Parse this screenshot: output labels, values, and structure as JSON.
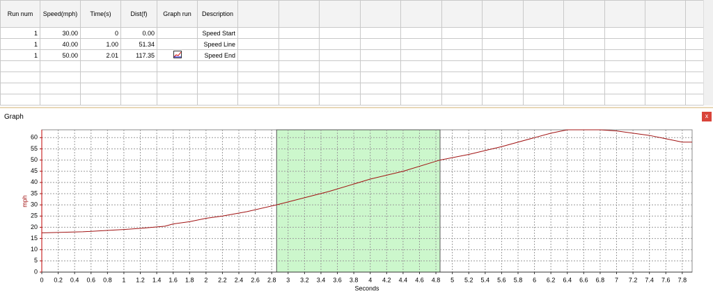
{
  "table": {
    "headers": [
      "Run num",
      "Speed(mph)",
      "Time(s)",
      "Dist(f)",
      "Graph run",
      "Description"
    ],
    "rows": [
      {
        "run": "1",
        "speed": "30.00",
        "time": "0",
        "dist": "0.00",
        "description": "Speed Start"
      },
      {
        "run": "1",
        "speed": "40.00",
        "time": "1.00",
        "dist": "51.34",
        "description": "Speed Line"
      },
      {
        "run": "1",
        "speed": "50.00",
        "time": "2.01",
        "dist": "117.35",
        "description": "Speed End"
      }
    ]
  },
  "panel": {
    "title": "Graph",
    "close": "x"
  },
  "chart_data": {
    "type": "line",
    "x_label": "Seconds",
    "y_label": "mph",
    "x": [
      0,
      0.5,
      1.0,
      1.2,
      1.5,
      1.6,
      1.8,
      2.0,
      2.2,
      2.5,
      2.86,
      3.5,
      4.0,
      4.4,
      4.85,
      5.2,
      5.6,
      6.0,
      6.2,
      6.4,
      6.8,
      7.0,
      7.4,
      7.6,
      7.8,
      7.92
    ],
    "values": [
      17.5,
      18,
      19,
      19.5,
      20.5,
      21.5,
      22.5,
      24,
      25,
      27,
      30,
      36,
      41.5,
      45,
      50,
      52.5,
      56,
      60,
      62,
      63.5,
      63.5,
      63,
      61,
      59.5,
      58,
      58
    ],
    "color": "#a01010",
    "shaded_range": [
      2.86,
      4.85
    ],
    "shade_color": "#ccf7cc",
    "xlim": [
      0,
      7.92
    ],
    "ylim": [
      0,
      63.5
    ],
    "xticks": [
      0,
      0.2,
      0.4,
      0.6,
      0.8,
      1,
      1.2,
      1.4,
      1.6,
      1.8,
      2,
      2.2,
      2.4,
      2.6,
      2.8,
      3,
      3.2,
      3.4,
      3.6,
      3.8,
      4,
      4.2,
      4.4,
      4.6,
      4.8,
      5,
      5.2,
      5.4,
      5.6,
      5.8,
      6,
      6.2,
      6.4,
      6.6,
      6.8,
      7,
      7.2,
      7.4,
      7.6,
      7.8
    ],
    "yticks": [
      0,
      5,
      10,
      15,
      20,
      25,
      30,
      35,
      40,
      45,
      50,
      55,
      60
    ],
    "grid": true
  }
}
